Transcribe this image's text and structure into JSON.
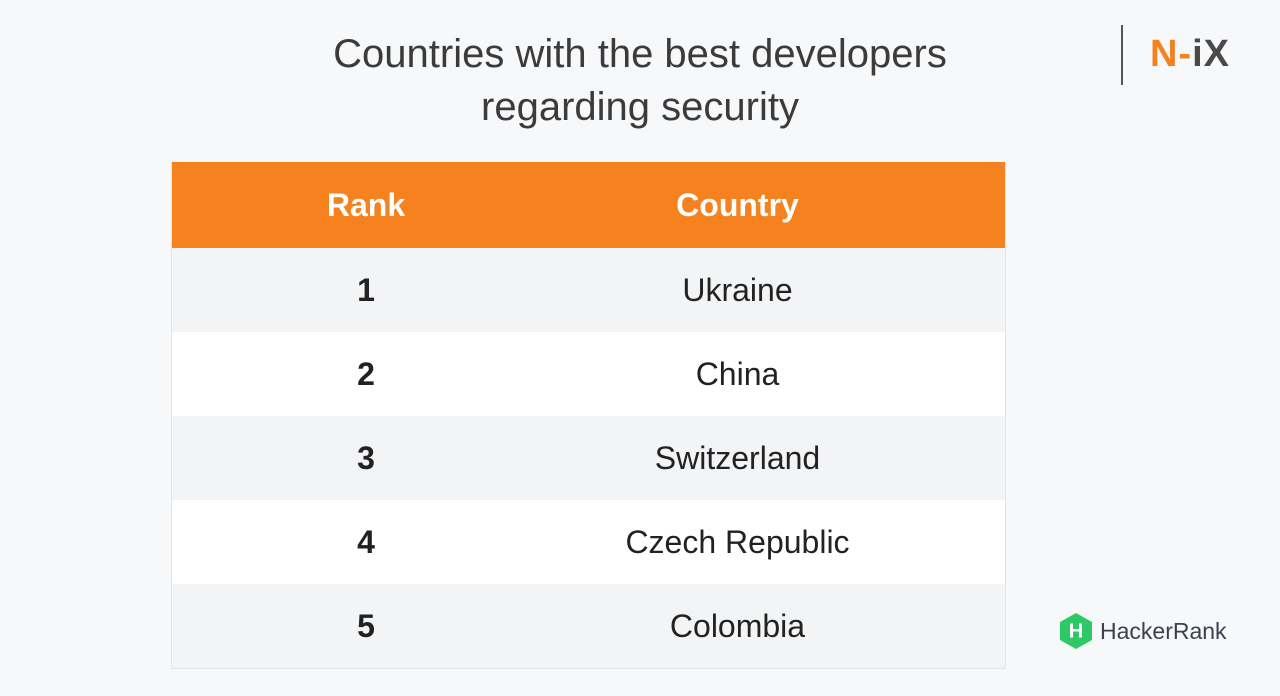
{
  "header": {
    "title": "Countries with the best developers regarding security"
  },
  "logo": {
    "parts": [
      "N-",
      "iX"
    ]
  },
  "table": {
    "columns": [
      "Rank",
      "Country"
    ],
    "rows": [
      [
        1,
        "Ukraine"
      ],
      [
        2,
        "China"
      ],
      [
        3,
        "Switzerland"
      ],
      [
        4,
        "Czech Republic"
      ],
      [
        5,
        "Colombia"
      ]
    ]
  },
  "source": {
    "icon": "H",
    "name": "HackerRank"
  }
}
